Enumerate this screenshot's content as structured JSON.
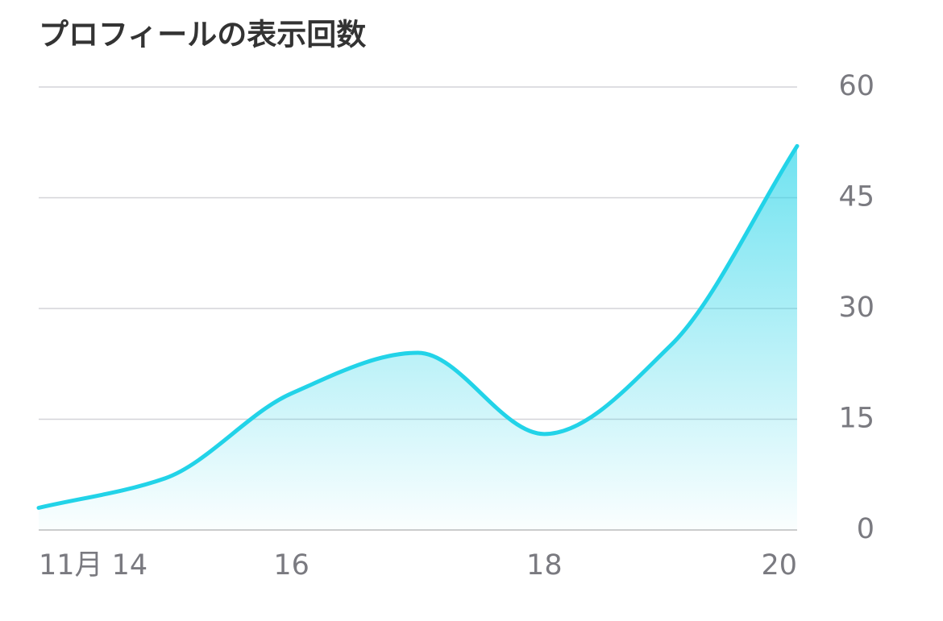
{
  "chart_data": {
    "type": "area",
    "title": "プロフィールの表示回数",
    "categories": [
      "11月 14",
      null,
      "16",
      null,
      "18",
      null,
      "20"
    ],
    "values": [
      3,
      7,
      18.5,
      24,
      13,
      25,
      52
    ],
    "color": "#22d3e8",
    "ylim": [
      0,
      60
    ],
    "yticks": [
      0,
      15,
      30,
      45,
      60
    ],
    "grid": true
  }
}
